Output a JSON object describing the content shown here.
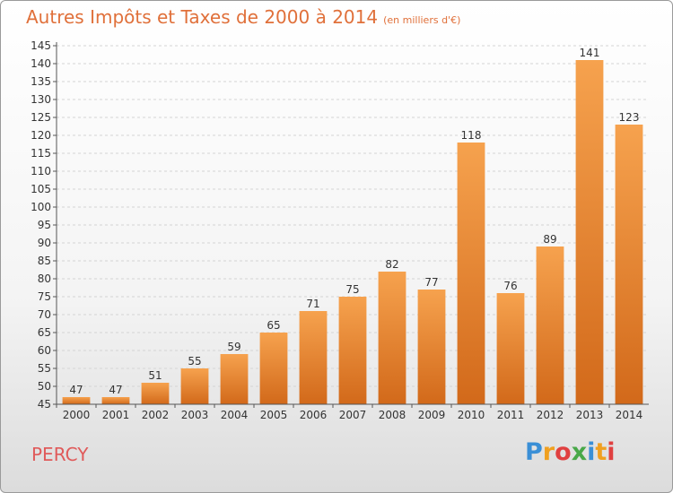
{
  "title": "Autres Impôts et Taxes de 2000 à 2014",
  "unit_note": "(en milliers d'€)",
  "commune": "PERCY",
  "brand": "Proxiti",
  "colors": {
    "bar_top": "#f6a24e",
    "bar_bottom": "#d2691a",
    "title": "#e0703a"
  },
  "chart_data": {
    "type": "bar",
    "title": "Autres Impôts et Taxes de 2000 à 2014",
    "ylabel": "(en milliers d'€)",
    "categories": [
      "2000",
      "2001",
      "2002",
      "2003",
      "2004",
      "2005",
      "2006",
      "2007",
      "2008",
      "2009",
      "2010",
      "2011",
      "2012",
      "2013",
      "2014"
    ],
    "values": [
      47,
      47,
      51,
      55,
      59,
      65,
      71,
      75,
      82,
      77,
      118,
      76,
      89,
      141,
      123
    ],
    "ylim": [
      45,
      145
    ],
    "ytick_step": 5,
    "grid": true,
    "legend": "none"
  }
}
